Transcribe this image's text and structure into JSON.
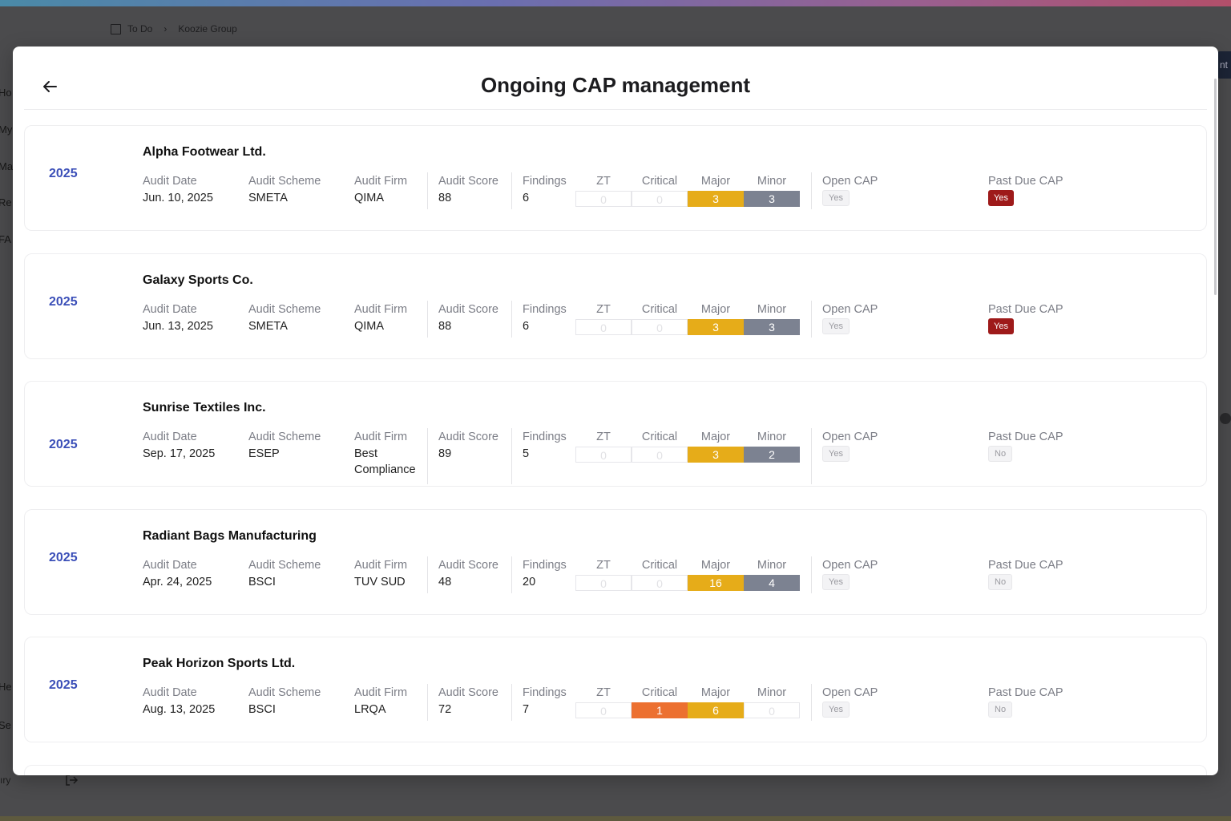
{
  "background": {
    "breadcrumb": {
      "root": "To Do",
      "current": "Koozie Group"
    },
    "nav_fragments": [
      "Ho",
      "My",
      "Ma",
      "Re",
      "FA",
      "He",
      "Se"
    ],
    "right_fragment": "nt",
    "bottom_fragment": "ıry"
  },
  "modal": {
    "title": "Ongoing CAP management",
    "labels": {
      "audit_date": "Audit Date",
      "audit_scheme": "Audit Scheme",
      "audit_firm": "Audit Firm",
      "audit_score": "Audit Score",
      "findings": "Findings",
      "zt": "ZT",
      "critical": "Critical",
      "major": "Major",
      "minor": "Minor",
      "open_cap": "Open CAP",
      "past_due_cap": "Past Due CAP"
    },
    "colors": {
      "major": "#e6ac19",
      "minor": "#7c8291",
      "critical": "#ec7030",
      "past_due_yes": "#9e1a1a",
      "year": "#3b4fb8"
    },
    "cards": [
      {
        "year": "2025",
        "name": "Alpha Footwear Ltd.",
        "audit_date": "Jun. 10, 2025",
        "audit_scheme": "SMETA",
        "audit_firm": "QIMA",
        "audit_score": "88",
        "findings": "6",
        "zt": "0",
        "critical": "0",
        "major": "3",
        "minor": "3",
        "open_cap": "Yes",
        "past_due_cap": "Yes"
      },
      {
        "year": "2025",
        "name": "Galaxy Sports Co.",
        "audit_date": "Jun. 13, 2025",
        "audit_scheme": "SMETA",
        "audit_firm": "QIMA",
        "audit_score": "88",
        "findings": "6",
        "zt": "0",
        "critical": "0",
        "major": "3",
        "minor": "3",
        "open_cap": "Yes",
        "past_due_cap": "Yes"
      },
      {
        "year": "2025",
        "name": "Sunrise Textiles Inc.",
        "audit_date": "Sep. 17, 2025",
        "audit_scheme": "ESEP",
        "audit_firm": "Best Compliance",
        "audit_score": "89",
        "findings": "5",
        "zt": "0",
        "critical": "0",
        "major": "3",
        "minor": "2",
        "open_cap": "Yes",
        "past_due_cap": "No"
      },
      {
        "year": "2025",
        "name": "Radiant Bags Manufacturing",
        "audit_date": "Apr. 24, 2025",
        "audit_scheme": "BSCI",
        "audit_firm": "TUV SUD",
        "audit_score": "48",
        "findings": "20",
        "zt": "0",
        "critical": "0",
        "major": "16",
        "minor": "4",
        "open_cap": "Yes",
        "past_due_cap": "No"
      },
      {
        "year": "2025",
        "name": "Peak Horizon Sports Ltd.",
        "audit_date": "Aug. 13, 2025",
        "audit_scheme": "BSCI",
        "audit_firm": "LRQA",
        "audit_score": "72",
        "findings": "7",
        "zt": "0",
        "critical": "1",
        "major": "6",
        "minor": "0",
        "open_cap": "Yes",
        "past_due_cap": "No"
      }
    ]
  }
}
